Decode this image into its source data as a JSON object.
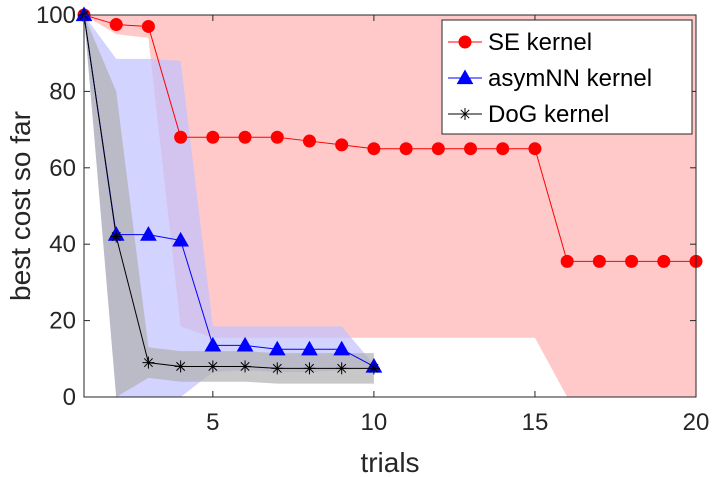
{
  "chart_data": {
    "type": "line",
    "xlabel": "trials",
    "ylabel": "best cost so far",
    "xlim": [
      1,
      20
    ],
    "ylim": [
      0,
      100
    ],
    "xticks": [
      5,
      10,
      15,
      20
    ],
    "yticks": [
      0,
      20,
      40,
      60,
      80,
      100
    ],
    "legend_position": "top-right",
    "series": [
      {
        "name": "SE kernel",
        "color": "#ff0000",
        "band_color": "#ffc0c0",
        "marker": "circle",
        "x": [
          1,
          2,
          3,
          4,
          5,
          6,
          7,
          8,
          9,
          10,
          11,
          12,
          13,
          14,
          15,
          16,
          17,
          18,
          19,
          20
        ],
        "values": [
          100,
          97.5,
          97,
          68,
          68,
          68,
          68,
          67,
          66,
          65,
          65,
          65,
          65,
          65,
          65,
          35.5,
          35.5,
          35.5,
          35.5,
          35.5
        ],
        "upper": [
          100,
          100,
          100,
          100,
          100,
          100,
          100,
          100,
          100,
          100,
          100,
          100,
          100,
          100,
          100,
          100,
          100,
          100,
          100,
          100
        ],
        "lower": [
          100,
          95,
          94,
          18.5,
          15.5,
          15.5,
          15.5,
          15.5,
          15.5,
          15.5,
          15.5,
          15.5,
          15.5,
          15.5,
          15.5,
          0,
          0,
          0,
          0,
          0
        ]
      },
      {
        "name": "asymNN kernel",
        "color": "#0000ff",
        "band_color": "#c0c0ff",
        "marker": "triangle",
        "x": [
          1,
          2,
          3,
          4,
          5,
          6,
          7,
          8,
          9,
          10
        ],
        "values": [
          100,
          42.5,
          42.5,
          41,
          13.5,
          13.5,
          12.5,
          12.5,
          12.5,
          8
        ],
        "upper": [
          100,
          88.5,
          88.5,
          88,
          18.5,
          18.5,
          18.5,
          18.5,
          18.5,
          8.5
        ],
        "lower": [
          100,
          0,
          0,
          0,
          6.5,
          7,
          6.5,
          6.5,
          7,
          7.5
        ]
      },
      {
        "name": "DoG kernel",
        "color": "#000000",
        "band_color": "#b0b0b0",
        "marker": "asterisk",
        "x": [
          1,
          2,
          3,
          4,
          5,
          6,
          7,
          8,
          9,
          10
        ],
        "values": [
          100,
          42,
          9,
          8,
          8,
          8,
          7.5,
          7.5,
          7.5,
          7.5
        ],
        "upper": [
          100,
          80,
          13,
          12,
          12,
          12,
          11.5,
          11.5,
          11.5,
          11.5
        ],
        "lower": [
          100,
          0,
          5,
          4,
          4,
          4,
          3.5,
          3.5,
          3.5,
          3.5
        ]
      }
    ]
  }
}
